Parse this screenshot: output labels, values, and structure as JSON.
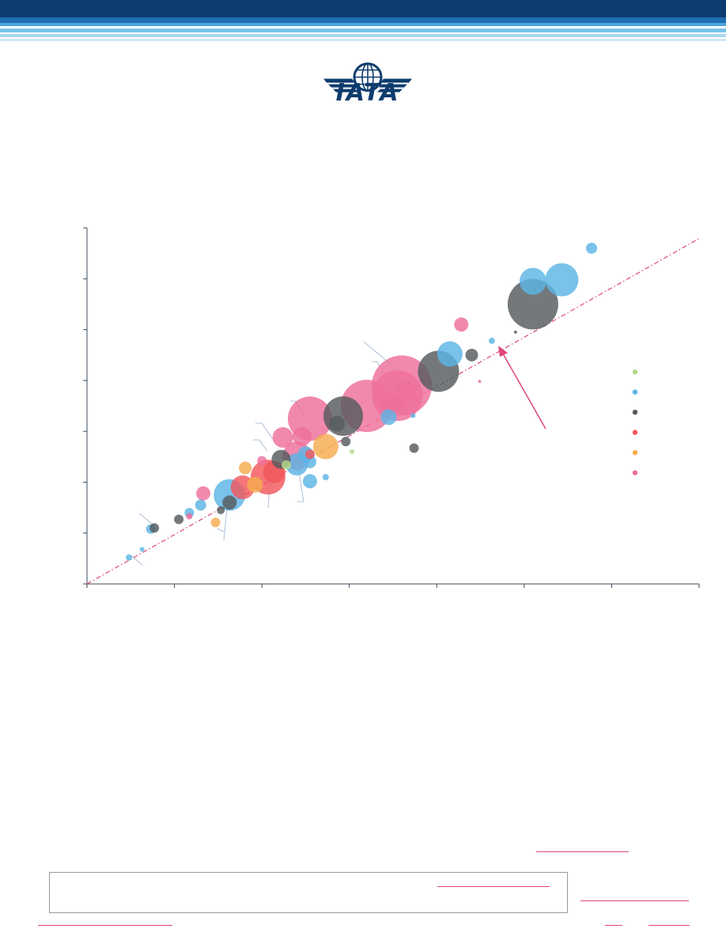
{
  "logo": {
    "wordmark": "IATA",
    "icon": "iata-globe-wings-logo"
  },
  "colors": {
    "brand_navy": "#0f3c6e",
    "header_blue": "#1f6fb5",
    "trend_line": "#e0457b",
    "series": [
      "#b5d98a",
      "#5bb4e5",
      "#555a5e",
      "#f2585c",
      "#f5ac4f",
      "#ee6f9b"
    ]
  },
  "chart_data": {
    "type": "scatter",
    "subtype": "bubble",
    "title": "",
    "xlabel": "",
    "ylabel": "",
    "xlim": [
      0,
      7
    ],
    "ylim": [
      0,
      7
    ],
    "x_ticks": [
      0,
      1,
      2,
      3,
      4,
      5,
      6,
      7
    ],
    "y_ticks": [
      0,
      1,
      2,
      3,
      4,
      5,
      6,
      7
    ],
    "tick_labels_visible": false,
    "grid": false,
    "legend": {
      "position": "right",
      "entries_visible": false,
      "series_count": 6
    },
    "reference_line": {
      "slope": 0.97,
      "intercept": 0,
      "style": "dash-dot"
    },
    "series": [
      {
        "points": [
          {
            "x": 2.28,
            "y": 2.34,
            "r": 6
          },
          {
            "x": 3.03,
            "y": 2.6,
            "r": 3
          }
        ]
      },
      {
        "points": [
          {
            "x": 0.48,
            "y": 0.52,
            "r": 4
          },
          {
            "x": 0.63,
            "y": 0.68,
            "r": 3
          },
          {
            "x": 0.73,
            "y": 1.08,
            "r": 6
          },
          {
            "x": 1.17,
            "y": 1.4,
            "r": 6
          },
          {
            "x": 1.3,
            "y": 1.55,
            "r": 7
          },
          {
            "x": 1.63,
            "y": 1.75,
            "r": 20
          },
          {
            "x": 2.4,
            "y": 2.35,
            "r": 14
          },
          {
            "x": 2.5,
            "y": 2.55,
            "r": 10
          },
          {
            "x": 2.55,
            "y": 2.4,
            "r": 8
          },
          {
            "x": 2.55,
            "y": 2.02,
            "r": 9
          },
          {
            "x": 2.73,
            "y": 2.1,
            "r": 4
          },
          {
            "x": 3.45,
            "y": 3.28,
            "r": 10
          },
          {
            "x": 3.73,
            "y": 3.31,
            "r": 3
          },
          {
            "x": 4.15,
            "y": 4.52,
            "r": 16
          },
          {
            "x": 4.63,
            "y": 4.78,
            "r": 4
          },
          {
            "x": 5.1,
            "y": 5.95,
            "r": 17
          },
          {
            "x": 5.43,
            "y": 5.98,
            "r": 21
          },
          {
            "x": 5.77,
            "y": 6.6,
            "r": 7
          }
        ]
      },
      {
        "points": [
          {
            "x": 0.77,
            "y": 1.1,
            "r": 6
          },
          {
            "x": 1.05,
            "y": 1.27,
            "r": 6
          },
          {
            "x": 1.53,
            "y": 1.45,
            "r": 5
          },
          {
            "x": 1.63,
            "y": 1.6,
            "r": 9
          },
          {
            "x": 2.22,
            "y": 2.45,
            "r": 12
          },
          {
            "x": 2.86,
            "y": 3.15,
            "r": 10
          },
          {
            "x": 2.93,
            "y": 3.3,
            "r": 25
          },
          {
            "x": 2.96,
            "y": 2.8,
            "r": 6
          },
          {
            "x": 3.74,
            "y": 2.67,
            "r": 6
          },
          {
            "x": 4.02,
            "y": 4.18,
            "r": 26
          },
          {
            "x": 4.4,
            "y": 4.5,
            "r": 8
          },
          {
            "x": 4.9,
            "y": 4.95,
            "r": 2
          },
          {
            "x": 5.1,
            "y": 5.5,
            "r": 32
          }
        ]
      },
      {
        "points": [
          {
            "x": 1.78,
            "y": 1.9,
            "r": 15
          },
          {
            "x": 2.07,
            "y": 2.1,
            "r": 22
          },
          {
            "x": 2.14,
            "y": 2.2,
            "r": 14
          },
          {
            "x": 2.55,
            "y": 2.55,
            "r": 6
          }
        ]
      },
      {
        "points": [
          {
            "x": 1.47,
            "y": 1.21,
            "r": 6
          },
          {
            "x": 1.81,
            "y": 2.28,
            "r": 8
          },
          {
            "x": 1.92,
            "y": 1.95,
            "r": 10
          },
          {
            "x": 2.73,
            "y": 2.7,
            "r": 16
          }
        ]
      },
      {
        "points": [
          {
            "x": 1.17,
            "y": 1.33,
            "r": 4
          },
          {
            "x": 1.33,
            "y": 1.78,
            "r": 9
          },
          {
            "x": 2.0,
            "y": 2.42,
            "r": 6
          },
          {
            "x": 2.24,
            "y": 2.88,
            "r": 13
          },
          {
            "x": 2.4,
            "y": 2.52,
            "r": 18
          },
          {
            "x": 2.46,
            "y": 2.9,
            "r": 12
          },
          {
            "x": 2.55,
            "y": 3.25,
            "r": 28
          },
          {
            "x": 3.2,
            "y": 3.5,
            "r": 33
          },
          {
            "x": 3.52,
            "y": 3.55,
            "r": 10
          },
          {
            "x": 3.55,
            "y": 3.7,
            "r": 32
          },
          {
            "x": 3.6,
            "y": 3.9,
            "r": 38
          },
          {
            "x": 3.65,
            "y": 3.8,
            "r": 12
          },
          {
            "x": 4.28,
            "y": 5.1,
            "r": 9
          },
          {
            "x": 4.49,
            "y": 3.98,
            "r": 2
          }
        ]
      }
    ]
  }
}
